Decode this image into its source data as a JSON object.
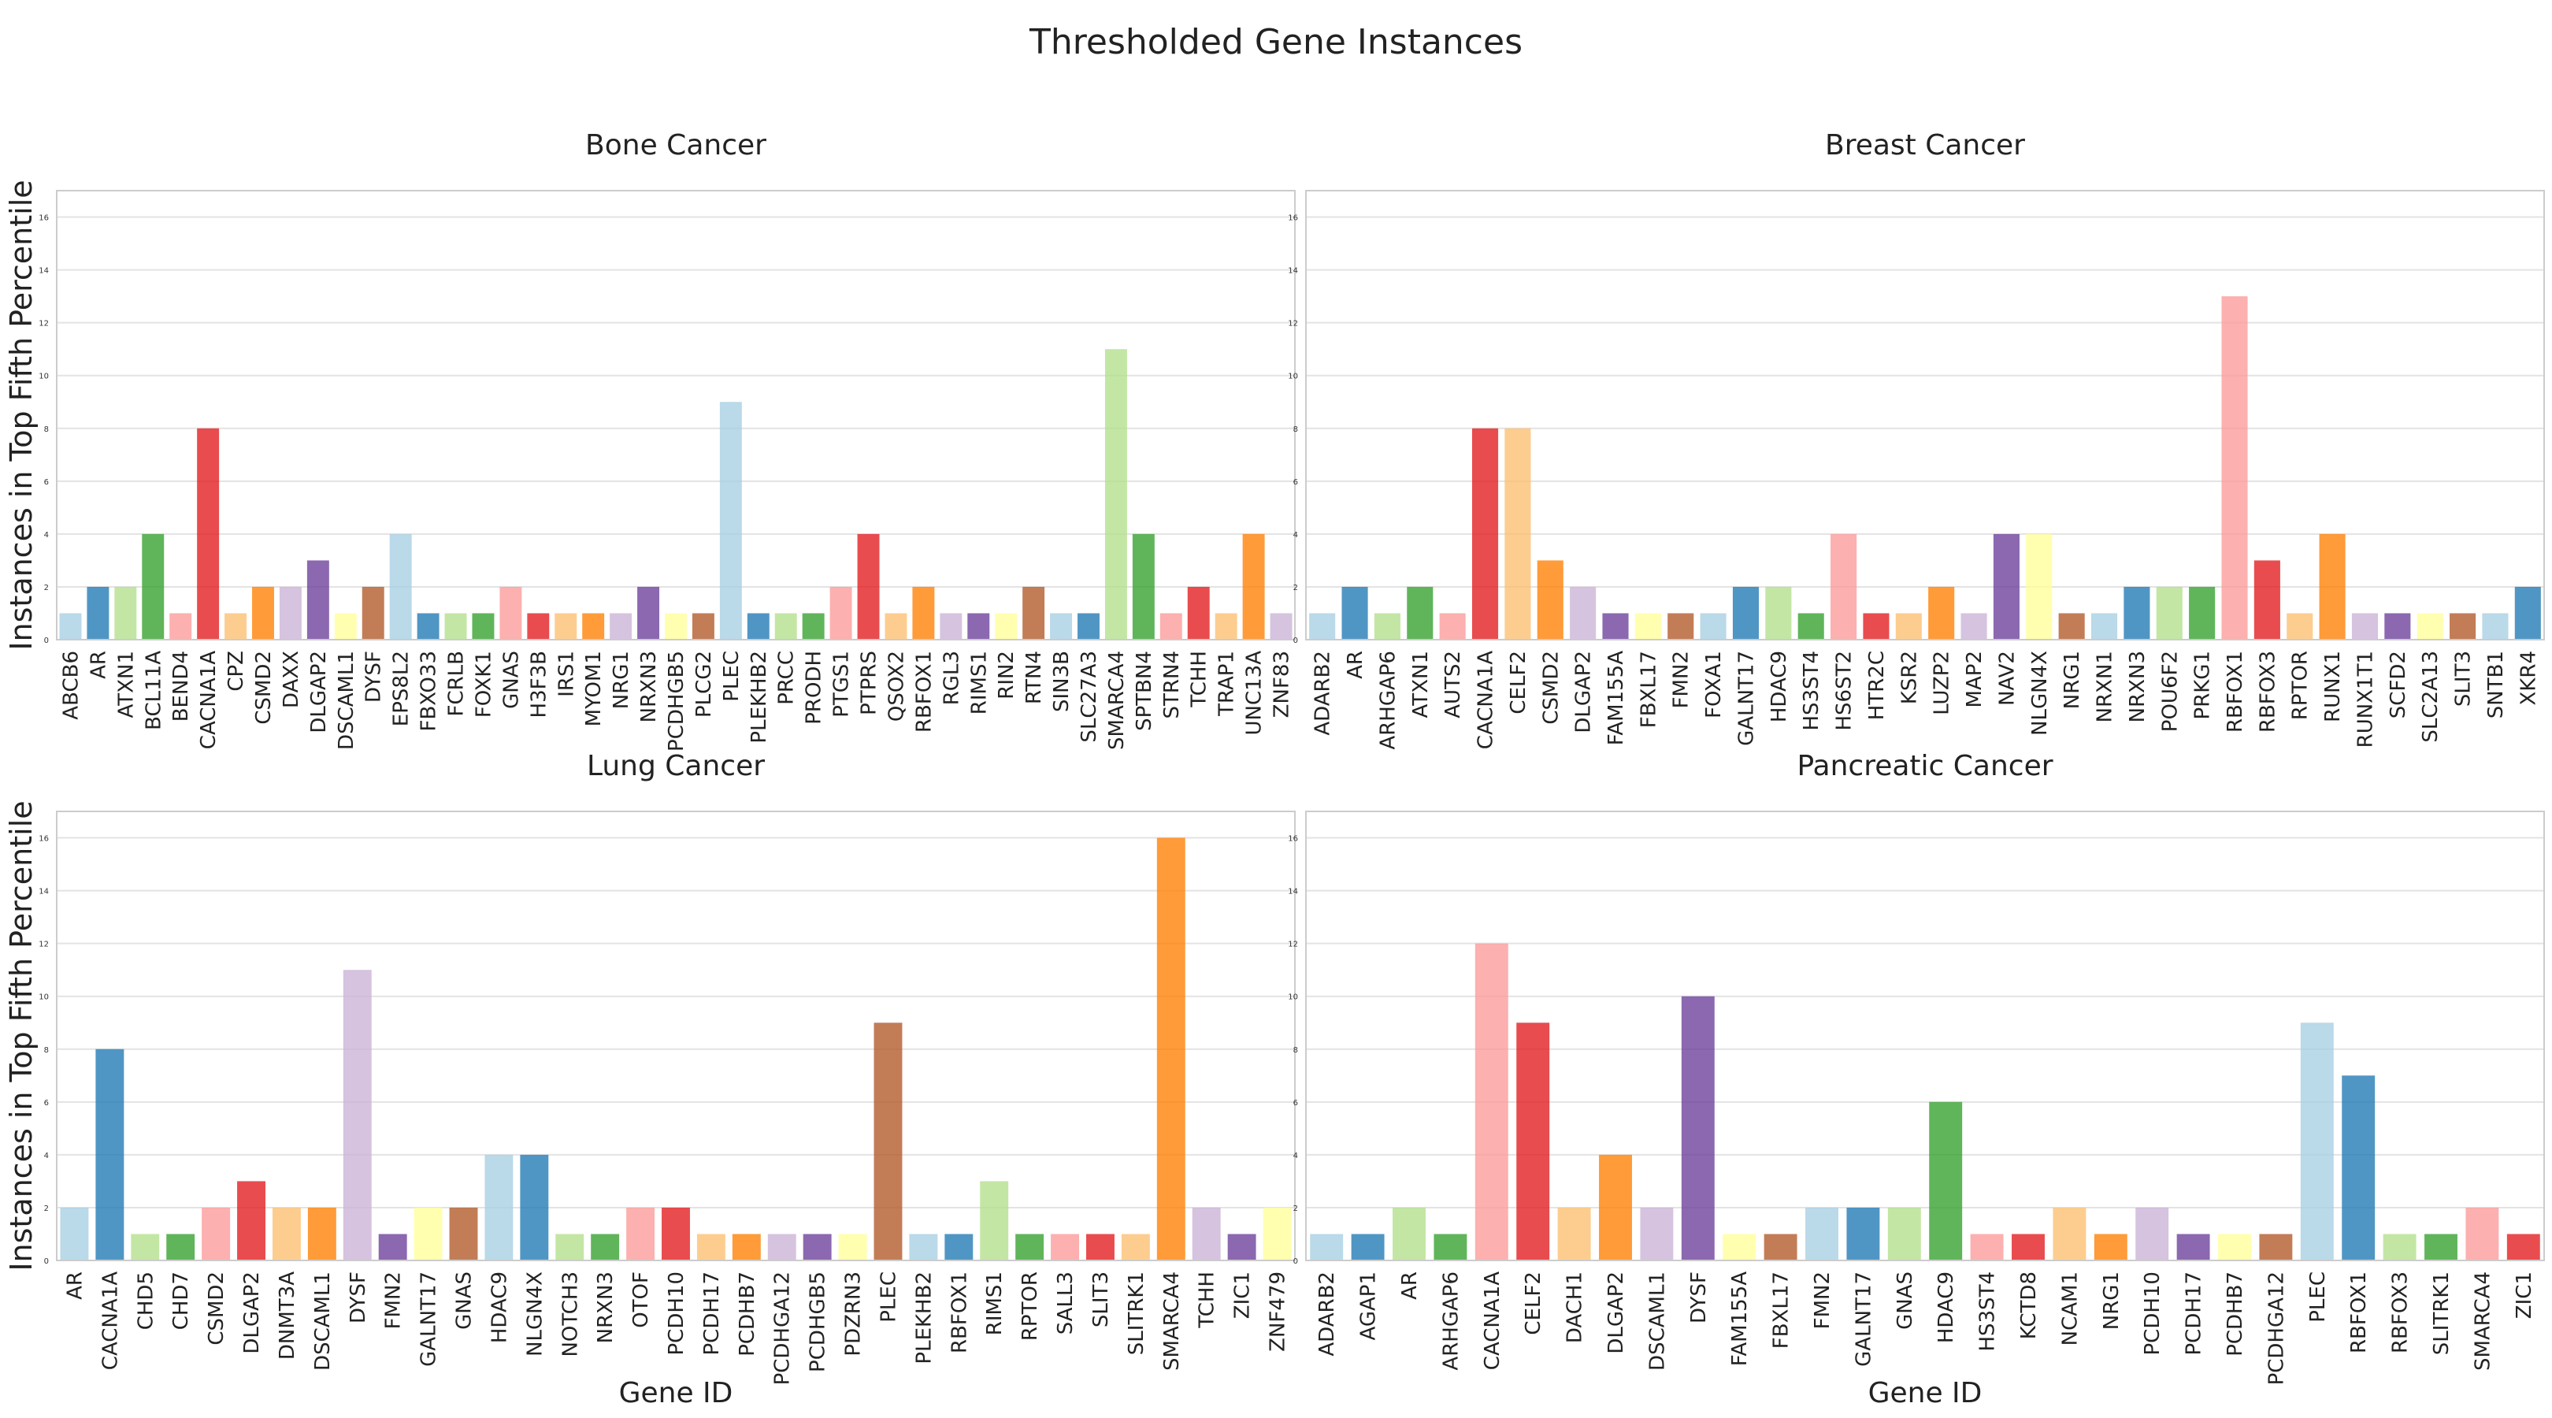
{
  "title": "Thresholded Gene Instances",
  "palette": [
    "#a6cee3",
    "#1f78b4",
    "#b2df8a",
    "#33a02c",
    "#fb9a99",
    "#e31a1c",
    "#fdbf6f",
    "#ff7f00",
    "#cab2d6",
    "#6a3d9a",
    "#ffff99",
    "#b15928"
  ],
  "chart_data": [
    {
      "type": "bar",
      "title": "Bone Cancer",
      "xlabel": "",
      "ylabel": "Instances in Top Fifth Percentile",
      "ylim": [
        0,
        17
      ],
      "yticks": [
        0,
        2,
        4,
        6,
        8,
        10,
        12,
        14,
        16
      ],
      "grid": true,
      "categories": [
        "ABCB6",
        "AR",
        "ATXN1",
        "BCL11A",
        "BEND4",
        "CACNA1A",
        "CPZ",
        "CSMD2",
        "DAXX",
        "DLGAP2",
        "DSCAML1",
        "DYSF",
        "EPS8L2",
        "FBXO33",
        "FCRLB",
        "FOXK1",
        "GNAS",
        "H3F3B",
        "IRS1",
        "MYOM1",
        "NRG1",
        "NRXN3",
        "PCDHGB5",
        "PLCG2",
        "PLEC",
        "PLEKHB2",
        "PRCC",
        "PRODH",
        "PTGS1",
        "PTPRS",
        "QSOX2",
        "RBFOX1",
        "RGL3",
        "RIMS1",
        "RIN2",
        "RTN4",
        "SIN3B",
        "SLC27A3",
        "SMARCA4",
        "SPTBN4",
        "STRN4",
        "TCHH",
        "TRAP1",
        "UNC13A",
        "ZNF83"
      ],
      "values": [
        1,
        2,
        2,
        4,
        1,
        8,
        1,
        2,
        2,
        3,
        1,
        2,
        4,
        1,
        1,
        1,
        2,
        1,
        1,
        1,
        1,
        2,
        1,
        1,
        9,
        1,
        1,
        1,
        2,
        4,
        1,
        2,
        1,
        1,
        1,
        2,
        1,
        1,
        11,
        4,
        1,
        2,
        1,
        4,
        1
      ]
    },
    {
      "type": "bar",
      "title": "Breast Cancer",
      "xlabel": "",
      "ylabel": "",
      "ylim": [
        0,
        17
      ],
      "yticks": [
        0,
        2,
        4,
        6,
        8,
        10,
        12,
        14,
        16
      ],
      "grid": true,
      "categories": [
        "ADARB2",
        "AR",
        "ARHGAP6",
        "ATXN1",
        "AUTS2",
        "CACNA1A",
        "CELF2",
        "CSMD2",
        "DLGAP2",
        "FAM155A",
        "FBXL17",
        "FMN2",
        "FOXA1",
        "GALNT17",
        "HDAC9",
        "HS3ST4",
        "HS6ST2",
        "HTR2C",
        "KSR2",
        "LUZP2",
        "MAP2",
        "NAV2",
        "NLGN4X",
        "NRG1",
        "NRXN1",
        "NRXN3",
        "POU6F2",
        "PRKG1",
        "RBFOX1",
        "RBFOX3",
        "RPTOR",
        "RUNX1",
        "RUNX1T1",
        "SCFD2",
        "SLC2A13",
        "SLIT3",
        "SNTB1",
        "XKR4"
      ],
      "values": [
        1,
        2,
        1,
        2,
        1,
        8,
        8,
        3,
        2,
        1,
        1,
        1,
        1,
        2,
        2,
        1,
        4,
        1,
        1,
        2,
        1,
        4,
        4,
        1,
        1,
        2,
        2,
        2,
        13,
        3,
        1,
        4,
        1,
        1,
        1,
        1,
        1,
        2
      ]
    },
    {
      "type": "bar",
      "title": "Lung Cancer",
      "xlabel": "Gene ID",
      "ylabel": "Instances in Top Fifth Percentile",
      "ylim": [
        0,
        17
      ],
      "yticks": [
        0,
        2,
        4,
        6,
        8,
        10,
        12,
        14,
        16
      ],
      "grid": true,
      "categories": [
        "AR",
        "CACNA1A",
        "CHD5",
        "CHD7",
        "CSMD2",
        "DLGAP2",
        "DNMT3A",
        "DSCAML1",
        "DYSF",
        "FMN2",
        "GALNT17",
        "GNAS",
        "HDAC9",
        "NLGN4X",
        "NOTCH3",
        "NRXN3",
        "OTOF",
        "PCDH10",
        "PCDH17",
        "PCDHB7",
        "PCDHGA12",
        "PCDHGB5",
        "PDZRN3",
        "PLEC",
        "PLEKHB2",
        "RBFOX1",
        "RIMS1",
        "RPTOR",
        "SALL3",
        "SLIT3",
        "SLITRK1",
        "SMARCA4",
        "TCHH",
        "ZIC1",
        "ZNF479"
      ],
      "values": [
        2,
        8,
        1,
        1,
        2,
        3,
        2,
        2,
        11,
        1,
        2,
        2,
        4,
        4,
        1,
        1,
        2,
        2,
        1,
        1,
        1,
        1,
        1,
        9,
        1,
        1,
        3,
        1,
        1,
        1,
        1,
        16,
        2,
        1,
        2
      ]
    },
    {
      "type": "bar",
      "title": "Pancreatic Cancer",
      "xlabel": "Gene ID",
      "ylabel": "",
      "ylim": [
        0,
        17
      ],
      "yticks": [
        0,
        2,
        4,
        6,
        8,
        10,
        12,
        14,
        16
      ],
      "grid": true,
      "categories": [
        "ADARB2",
        "AGAP1",
        "AR",
        "ARHGAP6",
        "CACNA1A",
        "CELF2",
        "DACH1",
        "DLGAP2",
        "DSCAML1",
        "DYSF",
        "FAM155A",
        "FBXL17",
        "FMN2",
        "GALNT17",
        "GNAS",
        "HDAC9",
        "HS3ST4",
        "KCTD8",
        "NCAM1",
        "NRG1",
        "PCDH10",
        "PCDH17",
        "PCDHB7",
        "PCDHGA12",
        "PLEC",
        "RBFOX1",
        "RBFOX3",
        "SLITRK1",
        "SMARCA4",
        "ZIC1"
      ],
      "values": [
        1,
        1,
        2,
        1,
        12,
        9,
        2,
        4,
        2,
        10,
        1,
        1,
        2,
        2,
        2,
        6,
        1,
        1,
        2,
        1,
        2,
        1,
        1,
        1,
        9,
        7,
        1,
        1,
        2,
        1
      ]
    }
  ]
}
